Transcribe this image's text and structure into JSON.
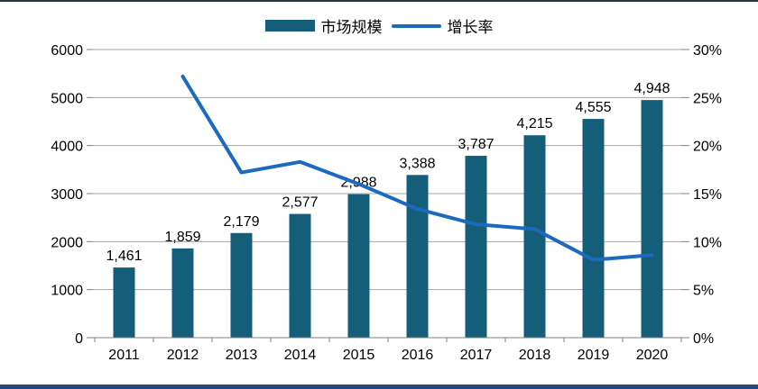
{
  "page": {
    "background": "#FFFFFF",
    "top_border_color": "#1F3B4D",
    "bottom_border_color": "#24497A"
  },
  "legend": {
    "position": "top-center",
    "items": [
      {
        "label": "市场规模",
        "swatch": "bar-swatch-icon",
        "color": "#155E7A"
      },
      {
        "label": "增长率",
        "swatch": "line-swatch-icon",
        "color": "#1C6AC0"
      }
    ]
  },
  "chart_data": {
    "type": "combo-bar-line",
    "categories": [
      "2011",
      "2012",
      "2013",
      "2014",
      "2015",
      "2016",
      "2017",
      "2018",
      "2019",
      "2020"
    ],
    "series": [
      {
        "name": "市场规模",
        "type": "bar",
        "axis": "left",
        "color": "#155E7A",
        "values": [
          1461,
          1859,
          2179,
          2577,
          2988,
          3388,
          3787,
          4215,
          4555,
          4948
        ],
        "labels": [
          "1,461",
          "1,859",
          "2,179",
          "2,577",
          "2,988",
          "3,388",
          "3,787",
          "4,215",
          "4,555",
          "4,948"
        ]
      },
      {
        "name": "增长率",
        "type": "line",
        "axis": "right",
        "color": "#1C6AC0",
        "values": [
          null,
          27.2,
          17.2,
          18.3,
          16.0,
          13.4,
          11.8,
          11.3,
          8.1,
          8.6
        ]
      }
    ],
    "left_axis": {
      "min": 0,
      "max": 6000,
      "step": 1000,
      "tick_values": [
        0,
        1000,
        2000,
        3000,
        4000,
        5000,
        6000
      ],
      "tick_labels": [
        "0",
        "1000",
        "2000",
        "3000",
        "4000",
        "5000",
        "6000"
      ]
    },
    "right_axis": {
      "min": 0,
      "max": 30,
      "step": 5,
      "tick_values": [
        0,
        5,
        10,
        15,
        20,
        25,
        30
      ],
      "tick_labels": [
        "0%",
        "5%",
        "10%",
        "15%",
        "20%",
        "25%",
        "30%"
      ]
    },
    "grid": true,
    "grid_color": "#A6A6A6",
    "axis_color": "#808080",
    "label_color": "#000000",
    "legend_position": "top"
  }
}
